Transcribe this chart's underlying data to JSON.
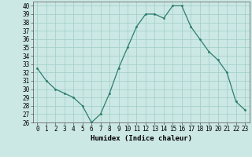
{
  "x": [
    0,
    1,
    2,
    3,
    4,
    5,
    6,
    7,
    8,
    9,
    10,
    11,
    12,
    13,
    14,
    15,
    16,
    17,
    18,
    19,
    20,
    21,
    22,
    23
  ],
  "y": [
    32.5,
    31.0,
    30.0,
    29.5,
    29.0,
    28.0,
    26.0,
    27.0,
    29.5,
    32.5,
    35.0,
    37.5,
    39.0,
    39.0,
    38.5,
    40.0,
    40.0,
    37.5,
    36.0,
    34.5,
    33.5,
    32.0,
    28.5,
    27.5
  ],
  "xlabel": "Humidex (Indice chaleur)",
  "ylim": [
    26,
    40.5
  ],
  "xlim": [
    -0.5,
    23.5
  ],
  "yticks": [
    26,
    27,
    28,
    29,
    30,
    31,
    32,
    33,
    34,
    35,
    36,
    37,
    38,
    39,
    40
  ],
  "xticks": [
    0,
    1,
    2,
    3,
    4,
    5,
    6,
    7,
    8,
    9,
    10,
    11,
    12,
    13,
    14,
    15,
    16,
    17,
    18,
    19,
    20,
    21,
    22,
    23
  ],
  "line_color": "#2d7d6e",
  "marker_color": "#2d7d6e",
  "bg_color": "#cce8e4",
  "grid_color": "#9ececa",
  "axis_label_fontsize": 6.5,
  "tick_fontsize": 5.5
}
